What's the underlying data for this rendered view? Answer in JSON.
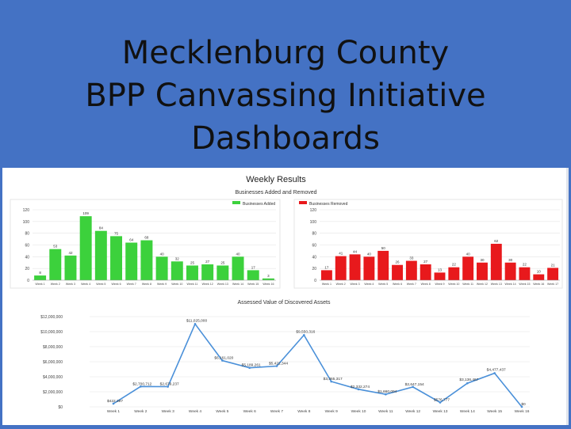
{
  "header": {
    "title_lines": [
      "Mecklenburg County",
      "BPP Canvassing Initiative",
      "Dashboards"
    ]
  },
  "dashboard": {
    "title": "Weekly Results"
  },
  "chart_data": [
    {
      "type": "bar",
      "title": "Businesses Added and Removed",
      "categories": [
        "Week 1",
        "Week 2",
        "Week 3",
        "Week 4",
        "Week 5",
        "Week 6",
        "Week 7",
        "Week 8",
        "Week 9",
        "Week 10",
        "Week 11",
        "Week 12",
        "Week 13",
        "Week 14",
        "Week 15",
        "Week 16"
      ],
      "series": [
        {
          "name": "Businesses Added",
          "color": "#3cd13c",
          "values": [
            8,
            53,
            42,
            109,
            84,
            75,
            64,
            68,
            40,
            32,
            25,
            27,
            25,
            40,
            17,
            3
          ]
        }
      ],
      "yticks": [
        0,
        20,
        40,
        60,
        80,
        100,
        120
      ],
      "ylim": [
        0,
        120
      ],
      "grid": true,
      "legend": "top"
    },
    {
      "type": "bar",
      "title": "",
      "categories": [
        "Week 1",
        "Week 2",
        "Week 3",
        "Week 4",
        "Week 5",
        "Week 6",
        "Week 7",
        "Week 8",
        "Week 9",
        "Week 10",
        "Week 11",
        "Week 12",
        "Week 13",
        "Week 14",
        "Week 15",
        "Week 16",
        "Week 17"
      ],
      "series": [
        {
          "name": "Businesses Removed",
          "color": "#e8191c",
          "values": [
            17,
            41,
            44,
            40,
            50,
            26,
            33,
            27,
            13,
            22,
            40,
            30,
            62,
            30,
            22,
            10,
            21
          ]
        }
      ],
      "yticks": [
        0,
        20,
        40,
        60,
        80,
        100,
        120
      ],
      "ylim": [
        0,
        120
      ],
      "grid": true,
      "legend": "top"
    },
    {
      "type": "line",
      "title": "Assessed Value of Discovered Assets",
      "categories": [
        "Week 1",
        "Week 2",
        "Week 3",
        "Week 4",
        "Week 5",
        "Week 6",
        "Week 7",
        "Week 8",
        "Week 9",
        "Week 10",
        "Week 11",
        "Week 12",
        "Week 13",
        "Week 14",
        "Week 15",
        "Week 16"
      ],
      "series": [
        {
          "name": "",
          "color": "#4a90d9",
          "values": [
            422397,
            2700712,
            2679237,
            11025000,
            6161020,
            5189261,
            5422344,
            9550316,
            3365317,
            2332274,
            1660094,
            2647154,
            576777,
            3136467,
            4477437,
            0
          ]
        }
      ],
      "value_labels": [
        "$422,397",
        "$2,700,712",
        "$2,679,237",
        "$11,025,000",
        "$6,161,020",
        "$5,189,261",
        "$5,422,344",
        "$9,550,316",
        "$3,365,317",
        "$2,332,274",
        "$1,660,094",
        "$2,647,154",
        "$576,777",
        "$3,136,467",
        "$4,477,437",
        "$0"
      ],
      "ytick_labels": [
        "$0",
        "$2,000,000",
        "$4,000,000",
        "$6,000,000",
        "$8,000,000",
        "$10,000,000",
        "$12,000,000"
      ],
      "ylim": [
        0,
        12000000
      ],
      "grid": true
    }
  ]
}
